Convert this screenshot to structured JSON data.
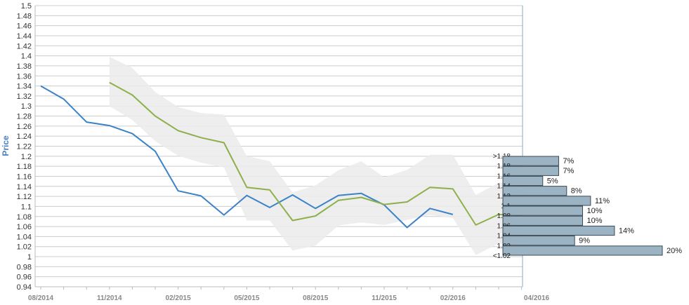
{
  "chart_data": {
    "type": "line",
    "ylabel": "Price",
    "ylim": [
      0.94,
      1.5
    ],
    "y_ticks": [
      "0.94",
      "0.96",
      "0.98",
      "1",
      "1.02",
      "1.04",
      "1.06",
      "1.08",
      "1.1",
      "1.12",
      "1.14",
      "1.16",
      "1.18",
      "1.2",
      "1.22",
      "1.24",
      "1.26",
      "1.28",
      "1.3",
      "1.32",
      "1.34",
      "1.36",
      "1.38",
      "1.4",
      "1.42",
      "1.44",
      "1.46",
      "1.48",
      "1.5"
    ],
    "x_tick_labels": [
      "08/2014",
      "11/2014",
      "02/2015",
      "05/2015",
      "08/2015",
      "11/2015",
      "02/2016",
      "04/2016"
    ],
    "grid": true,
    "colors": {
      "actual": "#3b82c6",
      "forecast": "#8db04a",
      "band": "#ebebeb",
      "bars": "#9bb3c2",
      "bar_border": "#3b4a55",
      "ylabel": "#4a7fc1"
    },
    "series": [
      {
        "values": [
          1.34,
          1.314,
          1.268,
          1.261,
          1.245,
          1.21,
          1.131,
          1.121,
          1.083,
          1.122,
          1.098,
          1.123,
          1.096,
          1.122,
          1.126,
          1.103,
          1.058,
          1.096,
          1.084
        ]
      },
      {
        "values": [
          null,
          null,
          null,
          1.347,
          1.322,
          1.28,
          1.251,
          1.237,
          1.227,
          1.138,
          1.133,
          1.072,
          1.081,
          1.112,
          1.118,
          1.104,
          1.109,
          1.138,
          1.135,
          1.063,
          1.084,
          1.082
        ]
      }
    ],
    "band": {
      "lower": [
        null,
        null,
        null,
        1.3,
        1.272,
        1.23,
        1.201,
        1.187,
        1.178,
        1.072,
        1.072,
        1.012,
        1.022,
        1.062,
        1.068,
        1.063,
        1.073,
        1.083,
        1.077,
        1.003,
        1.026,
        1.026
      ],
      "upper": [
        null,
        null,
        null,
        1.398,
        1.376,
        1.328,
        1.298,
        1.286,
        1.283,
        1.2,
        1.19,
        1.128,
        1.142,
        1.172,
        1.19,
        1.158,
        1.173,
        1.203,
        1.203,
        1.123,
        1.147,
        1.147
      ]
    },
    "distribution": [
      {
        "label": ">1.18",
        "value": 7,
        "text": "7%"
      },
      {
        "label": "1.18",
        "value": 7,
        "text": "7%"
      },
      {
        "label": "1.16",
        "value": 5,
        "text": "5%"
      },
      {
        "label": "1.14",
        "value": 8,
        "text": "8%"
      },
      {
        "label": "1.12",
        "value": 11,
        "text": "11%"
      },
      {
        "label": "1.1",
        "value": 10,
        "text": "10%"
      },
      {
        "label": "1.08",
        "value": 10,
        "text": "10%"
      },
      {
        "label": "1.06",
        "value": 14,
        "text": "14%"
      },
      {
        "label": "1.04",
        "value": 9,
        "text": "9%"
      },
      {
        "label": "1.02",
        "value": 20,
        "text": "20%"
      },
      {
        "label": "<1.02",
        "value": null,
        "text": ""
      }
    ]
  }
}
